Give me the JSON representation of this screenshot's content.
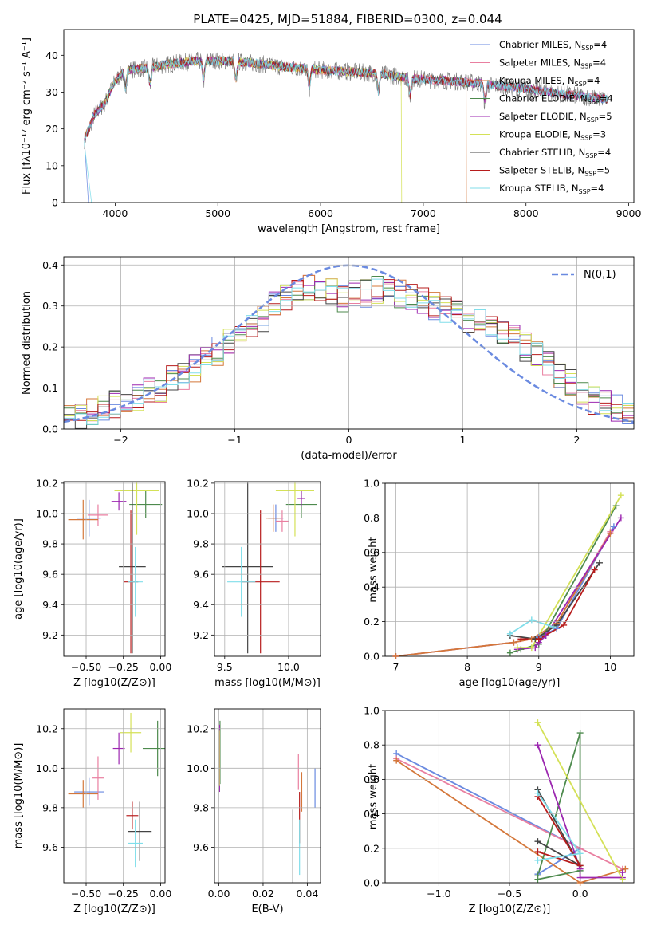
{
  "title": "PLATE=0425, MJD=51884, FIBERID=0300, z=0.044",
  "legend": [
    {
      "label": "Chabrier MILES, N",
      "sub": "SSP",
      "tail": "=4",
      "color": "#6a8ae0"
    },
    {
      "label": "Salpeter MILES, N",
      "sub": "SSP",
      "tail": "=4",
      "color": "#e97fa0"
    },
    {
      "label": "Kroupa MILES, N",
      "sub": "SSP",
      "tail": "=4",
      "color": "#d4773a"
    },
    {
      "label": "Chabrier ELODIE, N",
      "sub": "SSP",
      "tail": "=4",
      "color": "#4d8a4d"
    },
    {
      "label": "Salpeter ELODIE, N",
      "sub": "SSP",
      "tail": "=5",
      "color": "#9c27b0"
    },
    {
      "label": "Kroupa ELODIE, N",
      "sub": "SSP",
      "tail": "=3",
      "color": "#d4e157"
    },
    {
      "label": "Chabrier STELIB, N",
      "sub": "SSP",
      "tail": "=4",
      "color": "#444444"
    },
    {
      "label": "Salpeter STELIB, N",
      "sub": "SSP",
      "tail": "=5",
      "color": "#b71c1c"
    },
    {
      "label": "Kroupa STELIB, N",
      "sub": "SSP",
      "tail": "=4",
      "color": "#80deea"
    }
  ],
  "chart_data": [
    {
      "id": "spectrum",
      "type": "line",
      "xlabel": "wavelength [Angstrom, rest frame]",
      "ylabel": "Flux [fλ10⁻¹⁷ erg cm⁻² s⁻¹ A⁻¹]",
      "xlim": [
        3500,
        9050
      ],
      "ylim": [
        0,
        47
      ],
      "xticks": [
        "4000",
        "5000",
        "6000",
        "7000",
        "8000",
        "9000"
      ],
      "yticks": [
        "0",
        "10",
        "20",
        "30",
        "40"
      ],
      "grid": false,
      "legend": "top-right",
      "continuum": {
        "x": [
          3700,
          3800,
          3900,
          4000,
          4100,
          4300,
          4500,
          4800,
          5000,
          5300,
          5600,
          6000,
          6300,
          6600,
          6800,
          7000,
          7300,
          7500,
          7800,
          8000,
          8200,
          8500,
          8800
        ],
        "y": [
          17,
          24,
          27,
          33,
          36,
          36.5,
          37.5,
          38.5,
          38.5,
          38,
          37,
          36,
          35.5,
          35,
          34,
          33.5,
          33,
          32.5,
          31.5,
          31,
          30,
          29,
          28
        ]
      },
      "model_edge_angstrom": [
        {
          "x": 3740,
          "series": 0
        },
        {
          "x": 3770,
          "series": 8
        },
        {
          "x": 3900,
          "series": 5
        },
        {
          "x": 6790,
          "series": 5
        },
        {
          "x": 7420,
          "series": 2
        }
      ]
    },
    {
      "id": "residual-hist",
      "type": "step-histogram",
      "xlabel": "(data-model)/error",
      "ylabel": "Normed distribution",
      "xlim": [
        -2.5,
        2.5
      ],
      "ylim": [
        0,
        0.42
      ],
      "xticks": [
        "−2",
        "−1",
        "0",
        "1",
        "2"
      ],
      "yticks": [
        "0.0",
        "0.1",
        "0.2",
        "0.3",
        "0.4"
      ],
      "grid": true,
      "legend": "top-right",
      "reference": {
        "label": "N(0,1)",
        "color": "#6a8ae0"
      },
      "bin_centers": [
        -2.45,
        -2.35,
        -2.25,
        -2.15,
        -2.05,
        -1.95,
        -1.85,
        -1.75,
        -1.65,
        -1.55,
        -1.45,
        -1.35,
        -1.25,
        -1.15,
        -1.05,
        -0.95,
        -0.85,
        -0.75,
        -0.65,
        -0.55,
        -0.45,
        -0.35,
        -0.25,
        -0.15,
        -0.05,
        0.05,
        0.15,
        0.25,
        0.35,
        0.45,
        0.55,
        0.65,
        0.75,
        0.85,
        0.95,
        1.05,
        1.15,
        1.25,
        1.35,
        1.45,
        1.55,
        1.65,
        1.75,
        1.85,
        1.95,
        2.05,
        2.15,
        2.25,
        2.35,
        2.45
      ],
      "base": [
        0.03,
        0.035,
        0.04,
        0.05,
        0.06,
        0.07,
        0.08,
        0.09,
        0.1,
        0.12,
        0.13,
        0.15,
        0.17,
        0.19,
        0.21,
        0.22,
        0.25,
        0.27,
        0.3,
        0.32,
        0.33,
        0.34,
        0.33,
        0.34,
        0.32,
        0.33,
        0.33,
        0.34,
        0.35,
        0.33,
        0.32,
        0.31,
        0.3,
        0.29,
        0.28,
        0.27,
        0.26,
        0.25,
        0.24,
        0.22,
        0.2,
        0.18,
        0.16,
        0.13,
        0.11,
        0.09,
        0.07,
        0.06,
        0.05,
        0.04
      ]
    },
    {
      "id": "age-vs-Z",
      "type": "errorbar",
      "xlabel": "Z [log10(Z/Z⊙)]",
      "ylabel": "age  [log10(age/yr)]",
      "xlim": [
        -0.65,
        0.03
      ],
      "ylim": [
        9.06,
        10.21
      ],
      "xticks": [
        "−0.50",
        "−0.25",
        "0.00"
      ],
      "yticks": [
        "9.2",
        "9.4",
        "9.6",
        "9.8",
        "10.0",
        "10.2"
      ],
      "grid": true,
      "points": [
        {
          "s": 0,
          "x": -0.48,
          "y": 9.97,
          "xe": 0.08,
          "ye": 0.12
        },
        {
          "s": 1,
          "x": -0.42,
          "y": 9.99,
          "xe": 0.07,
          "ye": 0.07
        },
        {
          "s": 2,
          "x": -0.52,
          "y": 9.96,
          "xe": 0.1,
          "ye": 0.13
        },
        {
          "s": 3,
          "x": -0.1,
          "y": 10.06,
          "xe": 0.11,
          "ye": 0.09
        },
        {
          "s": 4,
          "x": -0.28,
          "y": 10.08,
          "xe": 0.05,
          "ye": 0.06
        },
        {
          "s": 5,
          "x": -0.16,
          "y": 10.15,
          "xe": 0.15,
          "ye": 0.29
        },
        {
          "s": 6,
          "x": -0.19,
          "y": 9.65,
          "xe": 0.09,
          "ye": 0.57
        },
        {
          "s": 7,
          "x": -0.2,
          "y": 9.55,
          "xe": 0.05,
          "ye": 0.47
        },
        {
          "s": 8,
          "x": -0.17,
          "y": 9.55,
          "xe": 0.05,
          "ye": 0.23
        }
      ]
    },
    {
      "id": "age-vs-mass",
      "type": "errorbar",
      "xlabel": "mass [log10(M/M⊙)]",
      "ylabel": "",
      "xlim": [
        9.42,
        10.25
      ],
      "ylim": [
        9.06,
        10.21
      ],
      "xticks": [
        "9.5",
        "10.0"
      ],
      "yticks": [
        "9.2",
        "9.4",
        "9.6",
        "9.8",
        "10.0",
        "10.2"
      ],
      "grid": true,
      "points": [
        {
          "s": 0,
          "x": 9.9,
          "y": 9.97,
          "xe": 0.06,
          "ye": 0.09
        },
        {
          "s": 1,
          "x": 9.95,
          "y": 9.95,
          "xe": 0.05,
          "ye": 0.07
        },
        {
          "s": 2,
          "x": 9.88,
          "y": 9.97,
          "xe": 0.06,
          "ye": 0.09
        },
        {
          "s": 3,
          "x": 10.1,
          "y": 10.06,
          "xe": 0.12,
          "ye": 0.09
        },
        {
          "s": 4,
          "x": 10.1,
          "y": 10.1,
          "xe": 0.03,
          "ye": 0.05
        },
        {
          "s": 5,
          "x": 10.05,
          "y": 10.15,
          "xe": 0.15,
          "ye": 0.3
        },
        {
          "s": 6,
          "x": 9.68,
          "y": 9.65,
          "xe": 0.2,
          "ye": 0.57
        },
        {
          "s": 7,
          "x": 9.78,
          "y": 9.55,
          "xe": 0.15,
          "ye": 0.47
        },
        {
          "s": 8,
          "x": 9.63,
          "y": 9.55,
          "xe": 0.11,
          "ye": 0.23
        }
      ]
    },
    {
      "id": "mass-weight-vs-age",
      "type": "line",
      "xlabel": "age  [log10(age/yr)]",
      "ylabel": "mass weight",
      "xlim": [
        6.85,
        10.33
      ],
      "ylim": [
        0,
        1.0
      ],
      "xticks": [
        "7",
        "8",
        "9",
        "10"
      ],
      "yticks": [
        "0.0",
        "0.2",
        "0.4",
        "0.6",
        "0.8",
        "1.0"
      ],
      "grid": true,
      "series": [
        {
          "s": 0,
          "x": [
            7.0,
            8.65,
            9.0,
            9.25,
            10.05
          ],
          "y": [
            0.0,
            0.08,
            0.11,
            0.16,
            0.75
          ]
        },
        {
          "s": 1,
          "x": [
            7.0,
            8.65,
            8.9,
            9.25,
            10.0
          ],
          "y": [
            0.0,
            0.08,
            0.1,
            0.19,
            0.72
          ]
        },
        {
          "s": 2,
          "x": [
            7.0,
            8.65,
            8.9,
            9.25,
            10.0
          ],
          "y": [
            0.0,
            0.08,
            0.1,
            0.19,
            0.71
          ]
        },
        {
          "s": 3,
          "x": [
            8.6,
            8.75,
            9.0,
            10.08
          ],
          "y": [
            0.02,
            0.04,
            0.07,
            0.87
          ]
        },
        {
          "s": 4,
          "x": [
            8.7,
            8.95,
            9.0,
            9.1,
            10.15
          ],
          "y": [
            0.04,
            0.05,
            0.08,
            0.12,
            0.8
          ]
        },
        {
          "s": 5,
          "x": [
            8.7,
            8.9,
            10.15
          ],
          "y": [
            0.05,
            0.05,
            0.93
          ]
        },
        {
          "s": 6,
          "x": [
            8.6,
            8.95,
            9.25,
            9.85
          ],
          "y": [
            0.12,
            0.1,
            0.18,
            0.54
          ]
        },
        {
          "s": 7,
          "x": [
            8.75,
            9.0,
            9.35,
            9.78
          ],
          "y": [
            0.1,
            0.1,
            0.18,
            0.5
          ]
        },
        {
          "s": 8,
          "x": [
            8.6,
            8.9,
            9.2
          ],
          "y": [
            0.13,
            0.21,
            0.17
          ]
        }
      ]
    },
    {
      "id": "mass-vs-Z",
      "type": "errorbar",
      "xlabel": "Z [log10(Z/Z⊙)]",
      "ylabel": "mass [log10(M/M⊙)]",
      "xlim": [
        -0.65,
        0.03
      ],
      "ylim": [
        9.42,
        10.3
      ],
      "xticks": [
        "−0.50",
        "−0.25",
        "0.00"
      ],
      "yticks": [
        "9.6",
        "9.8",
        "10.0",
        "10.2"
      ],
      "grid": true,
      "points": [
        {
          "s": 0,
          "x": -0.48,
          "y": 9.88,
          "xe": 0.1,
          "ye": 0.07
        },
        {
          "s": 1,
          "x": -0.42,
          "y": 9.95,
          "xe": 0.04,
          "ye": 0.11
        },
        {
          "s": 2,
          "x": -0.52,
          "y": 9.87,
          "xe": 0.1,
          "ye": 0.07
        },
        {
          "s": 3,
          "x": -0.02,
          "y": 10.1,
          "xe": 0.1,
          "ye": 0.14
        },
        {
          "s": 4,
          "x": -0.28,
          "y": 10.1,
          "xe": 0.04,
          "ye": 0.08
        },
        {
          "s": 5,
          "x": -0.2,
          "y": 10.18,
          "xe": 0.07,
          "ye": 0.1
        },
        {
          "s": 6,
          "x": -0.14,
          "y": 9.68,
          "xe": 0.08,
          "ye": 0.15
        },
        {
          "s": 7,
          "x": -0.19,
          "y": 9.76,
          "xe": 0.04,
          "ye": 0.07
        },
        {
          "s": 8,
          "x": -0.17,
          "y": 9.62,
          "xe": 0.05,
          "ye": 0.12
        }
      ]
    },
    {
      "id": "mass-vs-EBV",
      "type": "errorbar",
      "xlabel": "E(B-V)",
      "ylabel": "",
      "xlim": [
        -0.002,
        0.046
      ],
      "ylim": [
        9.42,
        10.3
      ],
      "xticks": [
        "0.00",
        "0.02",
        "0.04"
      ],
      "yticks": [
        "9.6",
        "9.8",
        "10.0",
        "10.2"
      ],
      "grid": true,
      "points": [
        {
          "s": 0,
          "x": 0.0435,
          "y": 9.9,
          "xe": 0.0,
          "ye": 0.1
        },
        {
          "s": 1,
          "x": 0.036,
          "y": 9.98,
          "xe": 0.0,
          "ye": 0.09
        },
        {
          "s": 2,
          "x": 0.0375,
          "y": 9.88,
          "xe": 0.0,
          "ye": 0.1
        },
        {
          "s": 3,
          "x": 0.0005,
          "y": 10.08,
          "xe": 0.0,
          "ye": 0.16
        },
        {
          "s": 4,
          "x": 0.0003,
          "y": 10.05,
          "xe": 0.0,
          "ye": 0.17
        },
        {
          "s": 5,
          "x": 0.0002,
          "y": 10.05,
          "xe": 0.0,
          "ye": 0.14
        },
        {
          "s": 6,
          "x": 0.0335,
          "y": 9.6,
          "xe": 0.0,
          "ye": 0.19
        },
        {
          "s": 7,
          "x": 0.0365,
          "y": 9.75,
          "xe": 0.0,
          "ye": 0.13
        },
        {
          "s": 8,
          "x": 0.0365,
          "y": 9.6,
          "xe": 0.0,
          "ye": 0.14
        }
      ]
    },
    {
      "id": "mass-weight-vs-Z",
      "type": "line",
      "xlabel": "Z [log10(Z/Z⊙)]",
      "ylabel": "mass weight",
      "xlim": [
        -1.38,
        0.38
      ],
      "ylim": [
        0,
        1.0
      ],
      "xticks": [
        "−1.0",
        "−0.5",
        "0.0"
      ],
      "yticks": [
        "0.0",
        "0.2",
        "0.4",
        "0.6",
        "0.8",
        "1.0"
      ],
      "grid": true,
      "series": [
        {
          "s": 0,
          "x": [
            -1.3,
            0.0,
            -0.3
          ],
          "y": [
            0.75,
            0.2,
            0.05
          ]
        },
        {
          "s": 1,
          "x": [
            -1.3,
            0.0,
            0.3
          ],
          "y": [
            0.72,
            0.2,
            0.08
          ]
        },
        {
          "s": 2,
          "x": [
            -1.3,
            0.0,
            0.32
          ],
          "y": [
            0.71,
            0.0,
            0.08
          ]
        },
        {
          "s": 3,
          "x": [
            -0.3,
            0.0,
            0.0,
            -0.3
          ],
          "y": [
            0.02,
            0.07,
            0.87,
            0.04
          ]
        },
        {
          "s": 4,
          "x": [
            -0.3,
            0.0,
            0.0,
            0.3,
            0.3
          ],
          "y": [
            0.8,
            0.08,
            0.03,
            0.03,
            0.06
          ]
        },
        {
          "s": 5,
          "x": [
            -0.3,
            0.3
          ],
          "y": [
            0.93,
            0.02
          ]
        },
        {
          "s": 6,
          "x": [
            -0.3,
            0.0,
            -0.3
          ],
          "y": [
            0.54,
            0.1,
            0.24
          ]
        },
        {
          "s": 7,
          "x": [
            -0.3,
            0.0,
            -0.3
          ],
          "y": [
            0.5,
            0.1,
            0.18
          ]
        },
        {
          "s": 8,
          "x": [
            -0.3,
            0.0,
            -0.3
          ],
          "y": [
            0.52,
            0.17,
            0.13
          ]
        }
      ]
    }
  ]
}
